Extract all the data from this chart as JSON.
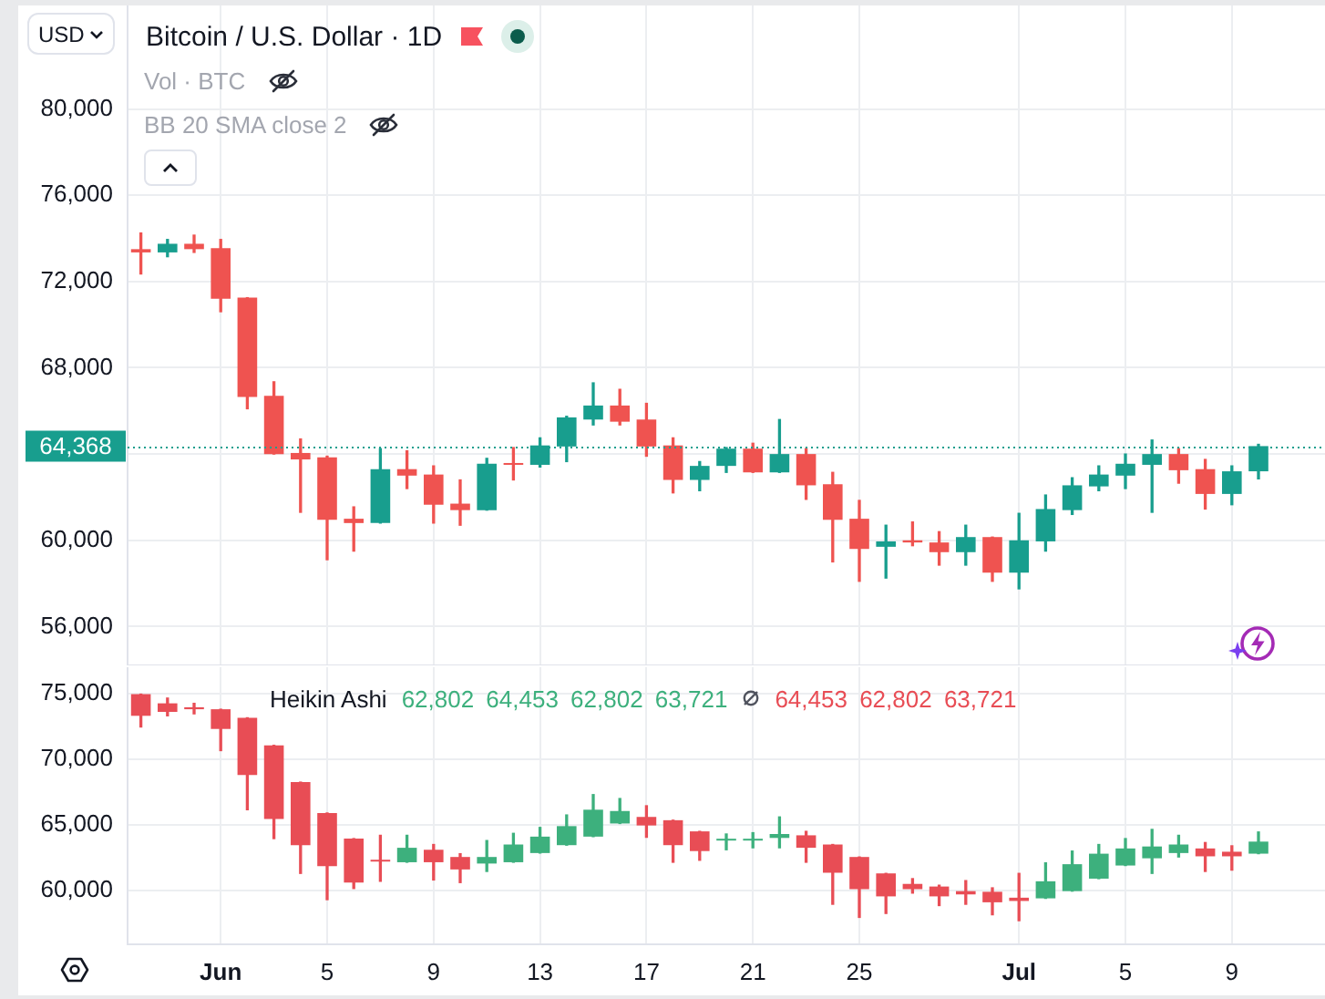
{
  "chart_data": [
    {
      "type": "candlestick",
      "title": "Bitcoin / U.S. Dollar · 1D",
      "ylabel": "USD",
      "annotations": [
        "Vol · BTC",
        "BB 20 SMA close 2"
      ],
      "x": [
        "--05-29",
        "--05-30",
        "--05-31",
        "--06-01",
        "--06-02",
        "--06-03",
        "--06-04",
        "--06-05",
        "--06-06",
        "--06-07",
        "--06-08",
        "--06-09",
        "--06-10",
        "--06-11",
        "--06-12",
        "--06-13",
        "--06-14",
        "--06-15",
        "--06-16",
        "--06-17",
        "--06-18",
        "--06-19",
        "--06-20",
        "--06-21",
        "--06-22",
        "--06-23",
        "--06-24",
        "--06-25",
        "--06-26",
        "--06-27",
        "--06-28",
        "--06-29",
        "--06-30",
        "--07-01",
        "--07-02",
        "--07-03",
        "--07-04",
        "--07-05",
        "--07-06",
        "--07-07",
        "--07-08",
        "--07-09",
        "--07-10"
      ],
      "ohlc": [
        [
          73500,
          74250,
          72350,
          73350
        ],
        [
          73350,
          73950,
          73150,
          73750
        ],
        [
          73750,
          74150,
          73350,
          73500
        ],
        [
          73550,
          73950,
          70600,
          71200
        ],
        [
          71250,
          71250,
          66100,
          66650
        ],
        [
          66700,
          67350,
          64000,
          64000
        ],
        [
          64050,
          64700,
          61300,
          63750
        ],
        [
          63850,
          63900,
          59100,
          60950
        ],
        [
          61000,
          61550,
          59500,
          60800
        ],
        [
          60800,
          64250,
          60800,
          63300
        ],
        [
          63300,
          64150,
          62400,
          63000
        ],
        [
          63050,
          63450,
          60800,
          61650
        ],
        [
          61700,
          62800,
          60700,
          61400
        ],
        [
          61400,
          63800,
          61400,
          63550
        ],
        [
          63550,
          64300,
          62800,
          63500
        ],
        [
          63500,
          64750,
          63400,
          64400
        ],
        [
          64350,
          65750,
          63650,
          65700
        ],
        [
          65600,
          67300,
          65350,
          66250
        ],
        [
          66250,
          67000,
          65350,
          65500
        ],
        [
          65600,
          66350,
          63900,
          64350
        ],
        [
          64400,
          64750,
          62200,
          62800
        ],
        [
          62800,
          63650,
          62300,
          63450
        ],
        [
          63450,
          64300,
          63150,
          64250
        ],
        [
          64250,
          64500,
          63150,
          63150
        ],
        [
          63150,
          65600,
          63150,
          64000
        ],
        [
          64000,
          64250,
          61900,
          62550
        ],
        [
          62600,
          63150,
          59000,
          60950
        ],
        [
          61000,
          61850,
          58100,
          59600
        ],
        [
          59700,
          60700,
          58250,
          59950
        ],
        [
          60000,
          60850,
          59750,
          59900
        ],
        [
          59900,
          60400,
          58850,
          59450
        ],
        [
          59450,
          60700,
          58850,
          60150
        ],
        [
          60150,
          60150,
          58100,
          58500
        ],
        [
          58500,
          61250,
          57750,
          60000
        ],
        [
          59950,
          62100,
          59500,
          61450
        ],
        [
          61400,
          62900,
          61200,
          62550
        ],
        [
          62500,
          63450,
          62300,
          63050
        ],
        [
          63000,
          64000,
          62400,
          63550
        ],
        [
          63500,
          64650,
          61300,
          64000
        ],
        [
          64000,
          64250,
          62650,
          63250
        ],
        [
          63300,
          63750,
          61450,
          62150
        ],
        [
          62150,
          63450,
          61650,
          63200
        ],
        [
          63200,
          64450,
          62850,
          64368
        ]
      ],
      "colors": [
        "#ef5350",
        "#189e8e",
        "#ef5350",
        "#ef5350",
        "#ef5350",
        "#ef5350",
        "#ef5350",
        "#ef5350",
        "#ef5350",
        "#189e8e",
        "#ef5350",
        "#ef5350",
        "#ef5350",
        "#189e8e",
        "#ef5350",
        "#189e8e",
        "#189e8e",
        "#189e8e",
        "#ef5350",
        "#ef5350",
        "#ef5350",
        "#189e8e",
        "#189e8e",
        "#ef5350",
        "#189e8e",
        "#ef5350",
        "#ef5350",
        "#ef5350",
        "#189e8e",
        "#ef5350",
        "#ef5350",
        "#189e8e",
        "#ef5350",
        "#189e8e",
        "#189e8e",
        "#189e8e",
        "#189e8e",
        "#189e8e",
        "#189e8e",
        "#ef5350",
        "#ef5350",
        "#189e8e",
        "#189e8e"
      ],
      "xlim": [
        "--05-28T12:00",
        "--07-12T12:00"
      ],
      "xticks": [
        {
          "value": "--06-01",
          "label": null
        },
        {
          "value": "--06-05",
          "label": null
        },
        {
          "value": "--06-09",
          "label": null
        },
        {
          "value": "--06-13",
          "label": null
        },
        {
          "value": "--06-17",
          "label": null
        },
        {
          "value": "--06-21",
          "label": null
        },
        {
          "value": "--06-25",
          "label": null
        },
        {
          "value": "--07-01",
          "label": null
        },
        {
          "value": "--07-05",
          "label": null
        },
        {
          "value": "--07-09",
          "label": null
        }
      ],
      "ylim": [
        54200,
        84800
      ],
      "yticks": [
        {
          "value": 56000,
          "label": "56,000"
        },
        {
          "value": 60000,
          "label": "60,000"
        },
        {
          "value": 64000,
          "label": null
        },
        {
          "value": 68000,
          "label": "68,000"
        },
        {
          "value": 72000,
          "label": "72,000"
        },
        {
          "value": 76000,
          "label": "76,000"
        },
        {
          "value": 80000,
          "label": "80,000"
        }
      ],
      "ref_lines": [
        {
          "axis": "y",
          "value": 64368,
          "label": "64,368",
          "color": "#189e8e",
          "line_style": "dotted"
        }
      ],
      "grid": true,
      "tick_labels": "y"
    },
    {
      "type": "candlestick",
      "title": "Heikin Ashi",
      "annotations": [
        "62,802 64,453 62,802 63,721",
        "64,453 62,802 63,721"
      ],
      "x": [
        "--05-29",
        "--05-30",
        "--05-31",
        "--06-01",
        "--06-02",
        "--06-03",
        "--06-04",
        "--06-05",
        "--06-06",
        "--06-07",
        "--06-08",
        "--06-09",
        "--06-10",
        "--06-11",
        "--06-12",
        "--06-13",
        "--06-14",
        "--06-15",
        "--06-16",
        "--06-17",
        "--06-18",
        "--06-19",
        "--06-20",
        "--06-21",
        "--06-22",
        "--06-23",
        "--06-24",
        "--06-25",
        "--06-26",
        "--06-27",
        "--06-28",
        "--06-29",
        "--06-30",
        "--07-01",
        "--07-02",
        "--07-03",
        "--07-04",
        "--07-05",
        "--07-06",
        "--07-07",
        "--07-08",
        "--07-09",
        "--07-10"
      ],
      "ohlc": [
        [
          74950,
          74950,
          72450,
          73300
        ],
        [
          74250,
          74650,
          73300,
          73600
        ],
        [
          73950,
          74250,
          73450,
          73800
        ],
        [
          73800,
          73800,
          70650,
          72300
        ],
        [
          73150,
          73150,
          66150,
          68800
        ],
        [
          71050,
          71050,
          63950,
          65450
        ],
        [
          68250,
          68250,
          61300,
          63450
        ],
        [
          65900,
          65900,
          59300,
          61850
        ],
        [
          63950,
          63950,
          60150,
          60600
        ],
        [
          62250,
          64200,
          60700,
          62200
        ],
        [
          62150,
          64200,
          62150,
          63250
        ],
        [
          63100,
          63500,
          60800,
          62150
        ],
        [
          62550,
          62800,
          60600,
          61600
        ],
        [
          62050,
          63800,
          61450,
          62550
        ],
        [
          62150,
          64350,
          62150,
          63500
        ],
        [
          62850,
          64800,
          62850,
          64100
        ],
        [
          63450,
          65750,
          63450,
          64900
        ],
        [
          64100,
          67300,
          64100,
          66150
        ],
        [
          65100,
          67000,
          65100,
          66050
        ],
        [
          65600,
          66450,
          64050,
          64950
        ],
        [
          65350,
          65350,
          62150,
          63450
        ],
        [
          64500,
          64500,
          62300,
          63000
        ],
        [
          63800,
          64300,
          63100,
          63850
        ],
        [
          63800,
          64400,
          63250,
          63850
        ],
        [
          64000,
          65600,
          63250,
          64300
        ],
        [
          64200,
          64500,
          62150,
          63250
        ],
        [
          63500,
          63500,
          58950,
          61350
        ],
        [
          62550,
          62550,
          57950,
          60100
        ],
        [
          61300,
          61300,
          58250,
          59550
        ],
        [
          60500,
          60900,
          59800,
          60100
        ],
        [
          60300,
          60400,
          58850,
          59550
        ],
        [
          59950,
          60750,
          58950,
          59700
        ],
        [
          59900,
          60200,
          58150,
          59100
        ],
        [
          59450,
          61300,
          57700,
          59200
        ],
        [
          59400,
          62100,
          59400,
          60700
        ],
        [
          59950,
          63000,
          59950,
          62000
        ],
        [
          60900,
          63500,
          60900,
          62800
        ],
        [
          61900,
          63950,
          61900,
          63200
        ],
        [
          62450,
          64650,
          61300,
          63350
        ],
        [
          62850,
          64200,
          62550,
          63500
        ],
        [
          63200,
          63650,
          61450,
          62600
        ],
        [
          62950,
          63400,
          61550,
          62600
        ],
        [
          62802,
          64453,
          62802,
          63721
        ]
      ],
      "colors": [
        "#e84d55",
        "#e84d55",
        "#e84d55",
        "#e84d55",
        "#e84d55",
        "#e84d55",
        "#e84d55",
        "#e84d55",
        "#e84d55",
        "#e84d55",
        "#3db07d",
        "#e84d55",
        "#e84d55",
        "#3db07d",
        "#3db07d",
        "#3db07d",
        "#3db07d",
        "#3db07d",
        "#3db07d",
        "#e84d55",
        "#e84d55",
        "#e84d55",
        "#3db07d",
        "#3db07d",
        "#3db07d",
        "#e84d55",
        "#e84d55",
        "#e84d55",
        "#e84d55",
        "#e84d55",
        "#e84d55",
        "#e84d55",
        "#e84d55",
        "#e84d55",
        "#3db07d",
        "#3db07d",
        "#3db07d",
        "#3db07d",
        "#3db07d",
        "#3db07d",
        "#e84d55",
        "#e84d55",
        "#3db07d"
      ],
      "xlim": [
        "--05-28T12:00",
        "--07-12T12:00"
      ],
      "xticks": [
        {
          "value": "--06-01",
          "label": "Jun"
        },
        {
          "value": "--06-05",
          "label": "5"
        },
        {
          "value": "--06-09",
          "label": "9"
        },
        {
          "value": "--06-13",
          "label": "13"
        },
        {
          "value": "--06-17",
          "label": "17"
        },
        {
          "value": "--06-21",
          "label": "21"
        },
        {
          "value": "--06-25",
          "label": "25"
        },
        {
          "value": "--07-01",
          "label": "Jul"
        },
        {
          "value": "--07-05",
          "label": "5"
        },
        {
          "value": "--07-09",
          "label": "9"
        }
      ],
      "ylim": [
        55900,
        77000
      ],
      "yticks": [
        {
          "value": 60000,
          "label": "60,000"
        },
        {
          "value": 65000,
          "label": "65,000"
        },
        {
          "value": 70000,
          "label": "70,000"
        },
        {
          "value": 75000,
          "label": "75,000"
        }
      ],
      "grid": true
    }
  ]
}
